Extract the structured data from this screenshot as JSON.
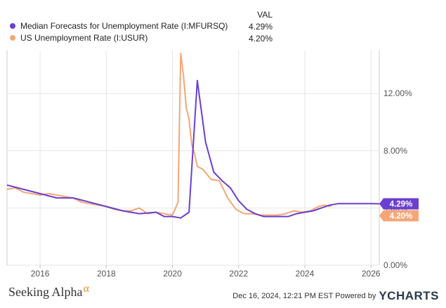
{
  "legend": {
    "val_header": "VAL",
    "items": [
      {
        "label": "Median Forecasts for Unemployment Rate (I:MFURSQ)",
        "value": "4.29%",
        "color": "#6a3fd1"
      },
      {
        "label": "US Unemployment Rate (I:USUR)",
        "value": "4.20%",
        "color": "#f5a677"
      }
    ]
  },
  "footer": {
    "brand_text": "Seeking Alpha",
    "brand_mark": "α",
    "timestamp": "Dec 16, 2024, 12:21 PM EST Powered by",
    "logo_text": "YCHARTS"
  },
  "chart_data": {
    "type": "line",
    "x_range": [
      "2015-01",
      "2026-04"
    ],
    "ylim": [
      0,
      15
    ],
    "y_ticks": [
      {
        "value": 0,
        "label": "0.00%"
      },
      {
        "value": 4,
        "label": "4.00%"
      },
      {
        "value": 8,
        "label": "8.00%"
      },
      {
        "value": 12,
        "label": "12.00%"
      }
    ],
    "x_ticks": [
      {
        "value": "2016-01",
        "label": "2016"
      },
      {
        "value": "2018-01",
        "label": "2018"
      },
      {
        "value": "2020-01",
        "label": "2020"
      },
      {
        "value": "2022-01",
        "label": "2022"
      },
      {
        "value": "2024-01",
        "label": "2024"
      },
      {
        "value": "2026-01",
        "label": "2026"
      }
    ],
    "grid": true,
    "series": [
      {
        "name": "Median Forecasts for Unemployment Rate (I:MFURSQ)",
        "color": "#6a3fd1",
        "end_label": "4.29%",
        "points": [
          [
            "2015-01",
            5.6
          ],
          [
            "2015-07",
            5.3
          ],
          [
            "2016-01",
            5.0
          ],
          [
            "2016-07",
            4.7
          ],
          [
            "2017-01",
            4.7
          ],
          [
            "2017-07",
            4.4
          ],
          [
            "2018-01",
            4.1
          ],
          [
            "2018-07",
            3.8
          ],
          [
            "2019-01",
            3.6
          ],
          [
            "2019-07",
            3.7
          ],
          [
            "2019-10",
            3.4
          ],
          [
            "2020-01",
            3.4
          ],
          [
            "2020-04",
            3.3
          ],
          [
            "2020-07",
            3.7
          ],
          [
            "2020-10",
            12.9
          ],
          [
            "2021-01",
            8.6
          ],
          [
            "2021-04",
            6.5
          ],
          [
            "2021-07",
            5.9
          ],
          [
            "2021-10",
            5.4
          ],
          [
            "2022-01",
            4.5
          ],
          [
            "2022-04",
            3.9
          ],
          [
            "2022-07",
            3.6
          ],
          [
            "2022-10",
            3.4
          ],
          [
            "2023-01",
            3.4
          ],
          [
            "2023-04",
            3.4
          ],
          [
            "2023-07",
            3.4
          ],
          [
            "2023-10",
            3.6
          ],
          [
            "2024-01",
            3.7
          ],
          [
            "2024-04",
            3.8
          ],
          [
            "2024-07",
            4.0
          ],
          [
            "2024-10",
            4.2
          ],
          [
            "2025-01",
            4.3
          ],
          [
            "2025-07",
            4.3
          ],
          [
            "2026-01",
            4.3
          ],
          [
            "2026-04",
            4.29
          ]
        ]
      },
      {
        "name": "US Unemployment Rate (I:USUR)",
        "color": "#f5a677",
        "end_label": "4.20%",
        "points": [
          [
            "2015-01",
            5.3
          ],
          [
            "2015-04",
            5.4
          ],
          [
            "2015-07",
            5.1
          ],
          [
            "2015-10",
            5.0
          ],
          [
            "2016-01",
            4.9
          ],
          [
            "2016-04",
            5.0
          ],
          [
            "2016-07",
            4.9
          ],
          [
            "2016-10",
            4.8
          ],
          [
            "2017-01",
            4.7
          ],
          [
            "2017-04",
            4.4
          ],
          [
            "2017-07",
            4.3
          ],
          [
            "2017-10",
            4.2
          ],
          [
            "2018-01",
            4.1
          ],
          [
            "2018-04",
            3.9
          ],
          [
            "2018-07",
            3.8
          ],
          [
            "2018-10",
            3.8
          ],
          [
            "2019-01",
            4.0
          ],
          [
            "2019-04",
            3.6
          ],
          [
            "2019-07",
            3.7
          ],
          [
            "2019-10",
            3.6
          ],
          [
            "2020-01",
            3.5
          ],
          [
            "2020-03",
            4.4
          ],
          [
            "2020-04",
            14.8
          ],
          [
            "2020-05",
            13.2
          ],
          [
            "2020-06",
            11.0
          ],
          [
            "2020-07",
            10.2
          ],
          [
            "2020-08",
            8.4
          ],
          [
            "2020-09",
            7.8
          ],
          [
            "2020-10",
            6.9
          ],
          [
            "2020-12",
            6.7
          ],
          [
            "2021-03",
            6.0
          ],
          [
            "2021-06",
            5.9
          ],
          [
            "2021-09",
            4.7
          ],
          [
            "2021-12",
            3.9
          ],
          [
            "2022-03",
            3.6
          ],
          [
            "2022-06",
            3.6
          ],
          [
            "2022-09",
            3.5
          ],
          [
            "2022-12",
            3.5
          ],
          [
            "2023-03",
            3.5
          ],
          [
            "2023-06",
            3.6
          ],
          [
            "2023-09",
            3.8
          ],
          [
            "2023-12",
            3.7
          ],
          [
            "2024-03",
            3.8
          ],
          [
            "2024-06",
            4.1
          ],
          [
            "2024-08",
            4.2
          ],
          [
            "2024-10",
            4.1
          ],
          [
            "2024-11",
            4.2
          ]
        ]
      }
    ]
  }
}
